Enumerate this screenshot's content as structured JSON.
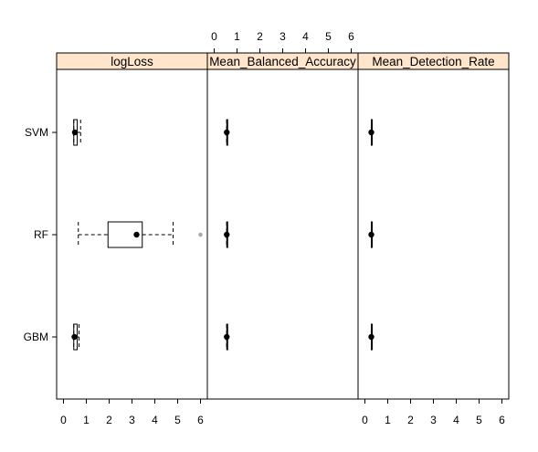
{
  "chart_data": {
    "type": "boxplot",
    "layout": "three horizontal panels sharing the y axis",
    "categories": [
      "SVM",
      "RF",
      "GBM"
    ],
    "panels": [
      {
        "title": "logLoss",
        "x_axis": "bottom",
        "xlim": [
          -0.3,
          6.3
        ],
        "ticks": [
          0,
          1,
          2,
          3,
          4,
          5,
          6
        ],
        "boxes": [
          {
            "category": "SVM",
            "whisker_low": 0.45,
            "q1": 0.45,
            "median": 0.5,
            "q3": 0.6,
            "whisker_high": 0.75,
            "outliers": []
          },
          {
            "category": "RF",
            "whisker_low": 0.65,
            "q1": 1.95,
            "median": 3.2,
            "q3": 3.45,
            "whisker_high": 4.8,
            "outliers": [
              6.0
            ]
          },
          {
            "category": "GBM",
            "whisker_low": 0.45,
            "q1": 0.45,
            "median": 0.48,
            "q3": 0.6,
            "whisker_high": 0.68,
            "outliers": []
          }
        ]
      },
      {
        "title": "Mean_Balanced_Accuracy",
        "x_axis": "top",
        "xlim": [
          -0.3,
          6.3
        ],
        "ticks": [
          0,
          1,
          2,
          3,
          4,
          5,
          6
        ],
        "boxes": [
          {
            "category": "SVM",
            "whisker_low": 0.55,
            "q1": 0.55,
            "median": 0.55,
            "q3": 0.55,
            "whisker_high": 0.55,
            "outliers": []
          },
          {
            "category": "RF",
            "whisker_low": 0.55,
            "q1": 0.55,
            "median": 0.55,
            "q3": 0.55,
            "whisker_high": 0.55,
            "outliers": []
          },
          {
            "category": "GBM",
            "whisker_low": 0.55,
            "q1": 0.55,
            "median": 0.55,
            "q3": 0.55,
            "whisker_high": 0.55,
            "outliers": []
          }
        ]
      },
      {
        "title": "Mean_Detection_Rate",
        "x_axis": "bottom",
        "xlim": [
          -0.3,
          6.3
        ],
        "ticks": [
          0,
          1,
          2,
          3,
          4,
          5,
          6
        ],
        "boxes": [
          {
            "category": "SVM",
            "whisker_low": 0.28,
            "q1": 0.28,
            "median": 0.28,
            "q3": 0.28,
            "whisker_high": 0.28,
            "outliers": []
          },
          {
            "category": "RF",
            "whisker_low": 0.28,
            "q1": 0.28,
            "median": 0.28,
            "q3": 0.28,
            "whisker_high": 0.28,
            "outliers": []
          },
          {
            "category": "GBM",
            "whisker_low": 0.28,
            "q1": 0.28,
            "median": 0.28,
            "q3": 0.28,
            "whisker_high": 0.28,
            "outliers": []
          }
        ]
      }
    ],
    "grid": false,
    "legend": "none"
  },
  "colors": {
    "strip_background": "#ffe5cc",
    "border": "#000000",
    "outlier": "#aaaaaa",
    "box": "#000000"
  }
}
